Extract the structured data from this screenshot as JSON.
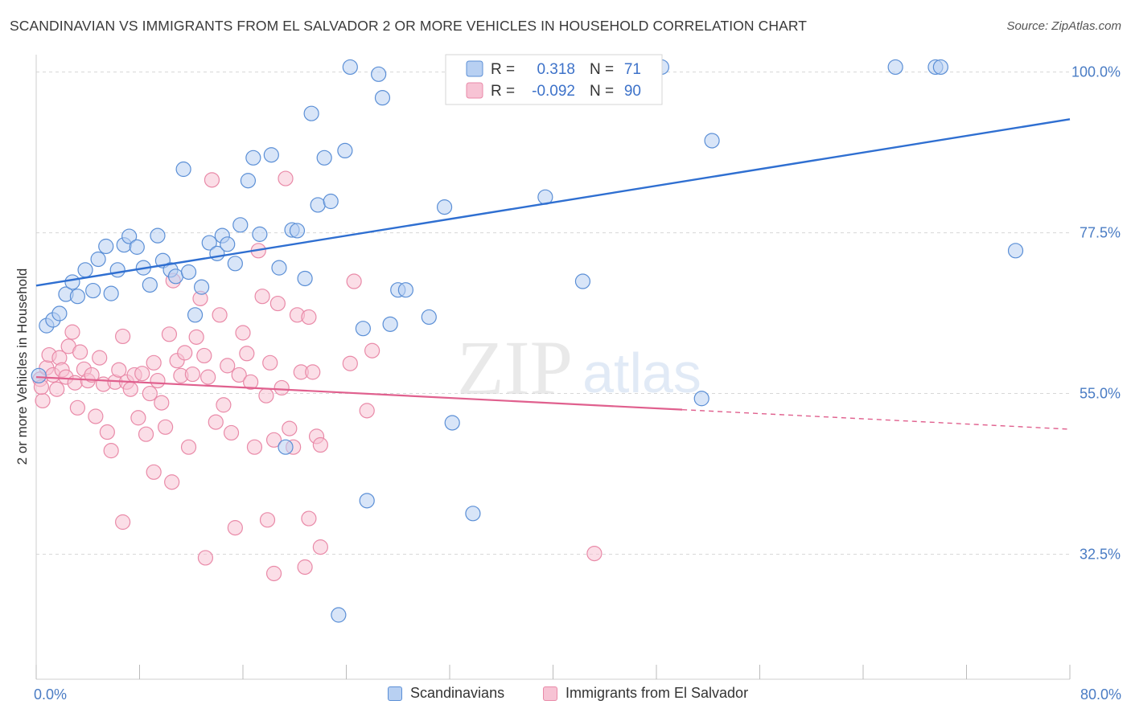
{
  "header": {
    "title": "SCANDINAVIAN VS IMMIGRANTS FROM EL SALVADOR 2 OR MORE VEHICLES IN HOUSEHOLD CORRELATION CHART",
    "source": "Source: ZipAtlas.com"
  },
  "watermark": {
    "zip": "ZIP",
    "atlas": "atlas"
  },
  "colors": {
    "blue_fill": "#b8d0f2",
    "blue_stroke": "#5b8fd6",
    "blue_line": "#2f6fd1",
    "pink_fill": "#f7c3d4",
    "pink_stroke": "#e98aa8",
    "pink_line": "#e0608e",
    "grid": "#d8d8d8",
    "tick_text": "#4a7cc4"
  },
  "legend": {
    "rows": [
      {
        "r_label": "R =",
        "r_value": "0.318",
        "n_label": "N =",
        "n_value": "71"
      },
      {
        "r_label": "R =",
        "r_value": "-0.092",
        "n_label": "N =",
        "n_value": "90"
      }
    ]
  },
  "bottom_legend": {
    "scandinavians": "Scandinavians",
    "el_salvador": "Immigrants from El Salvador"
  },
  "chart_data": {
    "type": "scatter",
    "title": "SCANDINAVIAN VS IMMIGRANTS FROM EL SALVADOR 2 OR MORE VEHICLES IN HOUSEHOLD CORRELATION CHART",
    "xlabel": "",
    "ylabel": "2 or more Vehicles in Household",
    "xlim": [
      0,
      80
    ],
    "ylim": [
      15,
      103
    ],
    "x_tick_labels": [
      {
        "value": 0,
        "label": "0.0%"
      },
      {
        "value": 80,
        "label": "80.0%"
      }
    ],
    "y_tick_labels": [
      {
        "value": 100,
        "label": "100.0%"
      },
      {
        "value": 77.5,
        "label": "77.5%"
      },
      {
        "value": 55,
        "label": "55.0%"
      },
      {
        "value": 32.5,
        "label": "32.5%"
      }
    ],
    "grid": true,
    "legend_position": "top-center",
    "series": [
      {
        "name": "Scandinavians",
        "color": "#5b8fd6",
        "r": 0.318,
        "n": 71,
        "trend": {
          "x": [
            0,
            80
          ],
          "y": [
            70.1,
            93.4
          ],
          "dashed_from": null
        },
        "points": [
          [
            0.2,
            57.5
          ],
          [
            0.8,
            64.5
          ],
          [
            1.3,
            65.3
          ],
          [
            1.8,
            66.2
          ],
          [
            2.3,
            68.9
          ],
          [
            2.8,
            70.6
          ],
          [
            3.2,
            68.6
          ],
          [
            3.8,
            72.3
          ],
          [
            4.4,
            69.4
          ],
          [
            4.8,
            73.8
          ],
          [
            5.4,
            75.6
          ],
          [
            5.8,
            69.0
          ],
          [
            6.3,
            72.3
          ],
          [
            6.8,
            75.8
          ],
          [
            7.2,
            77.0
          ],
          [
            7.8,
            75.5
          ],
          [
            8.3,
            72.6
          ],
          [
            8.8,
            70.2
          ],
          [
            9.4,
            77.1
          ],
          [
            9.8,
            73.6
          ],
          [
            10.4,
            72.3
          ],
          [
            10.8,
            71.4
          ],
          [
            11.4,
            86.4
          ],
          [
            11.8,
            72.0
          ],
          [
            12.3,
            66.0
          ],
          [
            12.8,
            69.9
          ],
          [
            13.4,
            76.1
          ],
          [
            14.0,
            74.6
          ],
          [
            14.4,
            77.1
          ],
          [
            14.8,
            75.9
          ],
          [
            15.4,
            73.2
          ],
          [
            15.8,
            78.6
          ],
          [
            16.4,
            84.8
          ],
          [
            16.8,
            88.0
          ],
          [
            17.3,
            77.3
          ],
          [
            18.2,
            88.4
          ],
          [
            18.8,
            72.6
          ],
          [
            19.3,
            47.5
          ],
          [
            19.8,
            77.9
          ],
          [
            20.2,
            77.8
          ],
          [
            20.8,
            71.1
          ],
          [
            21.3,
            94.2
          ],
          [
            21.8,
            81.4
          ],
          [
            22.3,
            88.0
          ],
          [
            22.8,
            81.9
          ],
          [
            23.4,
            24.0
          ],
          [
            23.9,
            89.0
          ],
          [
            24.3,
            100.7
          ],
          [
            25.3,
            64.1
          ],
          [
            25.6,
            40.0
          ],
          [
            26.5,
            99.7
          ],
          [
            26.8,
            96.4
          ],
          [
            27.4,
            64.7
          ],
          [
            28.0,
            69.5
          ],
          [
            28.6,
            69.5
          ],
          [
            30.4,
            65.7
          ],
          [
            31.6,
            81.1
          ],
          [
            32.2,
            50.9
          ],
          [
            33.8,
            38.2
          ],
          [
            37.3,
            100.7
          ],
          [
            39.4,
            82.5
          ],
          [
            42.3,
            70.7
          ],
          [
            43.2,
            100.7
          ],
          [
            44.2,
            100.7
          ],
          [
            48.4,
            100.7
          ],
          [
            51.5,
            54.3
          ],
          [
            52.3,
            90.4
          ],
          [
            66.5,
            100.7
          ],
          [
            69.6,
            100.7
          ],
          [
            75.8,
            75.0
          ],
          [
            70.0,
            100.7
          ]
        ]
      },
      {
        "name": "Immigrants from El Salvador",
        "color": "#e98aa8",
        "r": -0.092,
        "n": 90,
        "trend": {
          "x": [
            0,
            80
          ],
          "y": [
            57.3,
            50.0
          ],
          "dashed_from": 50
        },
        "points": [
          [
            0.3,
            57.0
          ],
          [
            0.5,
            54.0
          ],
          [
            0.8,
            58.6
          ],
          [
            1.0,
            60.4
          ],
          [
            1.3,
            57.6
          ],
          [
            1.6,
            55.6
          ],
          [
            1.8,
            60.0
          ],
          [
            2.0,
            58.3
          ],
          [
            2.3,
            57.3
          ],
          [
            2.5,
            61.6
          ],
          [
            2.8,
            63.6
          ],
          [
            3.0,
            56.5
          ],
          [
            3.2,
            53.0
          ],
          [
            3.4,
            60.8
          ],
          [
            3.7,
            58.4
          ],
          [
            4.0,
            56.8
          ],
          [
            4.3,
            57.6
          ],
          [
            4.6,
            51.8
          ],
          [
            4.9,
            60.0
          ],
          [
            5.2,
            56.3
          ],
          [
            5.5,
            49.6
          ],
          [
            5.8,
            47.0
          ],
          [
            6.1,
            56.6
          ],
          [
            6.4,
            58.3
          ],
          [
            6.7,
            63.0
          ],
          [
            7.0,
            56.6
          ],
          [
            7.3,
            55.6
          ],
          [
            7.6,
            57.6
          ],
          [
            7.9,
            51.6
          ],
          [
            8.2,
            57.8
          ],
          [
            8.5,
            49.3
          ],
          [
            8.8,
            55.0
          ],
          [
            9.1,
            59.3
          ],
          [
            9.4,
            56.8
          ],
          [
            9.7,
            53.7
          ],
          [
            10.0,
            50.3
          ],
          [
            10.3,
            63.3
          ],
          [
            10.6,
            70.8
          ],
          [
            10.9,
            59.6
          ],
          [
            11.2,
            57.5
          ],
          [
            11.5,
            60.7
          ],
          [
            11.8,
            47.5
          ],
          [
            12.1,
            57.7
          ],
          [
            12.4,
            62.9
          ],
          [
            12.7,
            68.3
          ],
          [
            13.0,
            60.3
          ],
          [
            13.3,
            57.3
          ],
          [
            13.6,
            84.9
          ],
          [
            13.9,
            51.0
          ],
          [
            14.2,
            66.0
          ],
          [
            14.5,
            53.4
          ],
          [
            14.8,
            58.9
          ],
          [
            15.1,
            49.5
          ],
          [
            15.4,
            36.2
          ],
          [
            15.7,
            57.6
          ],
          [
            16.0,
            63.5
          ],
          [
            16.3,
            60.6
          ],
          [
            16.6,
            56.6
          ],
          [
            16.9,
            47.5
          ],
          [
            17.2,
            75.0
          ],
          [
            17.5,
            68.6
          ],
          [
            17.8,
            54.7
          ],
          [
            18.1,
            59.3
          ],
          [
            18.4,
            48.5
          ],
          [
            18.7,
            67.6
          ],
          [
            19.0,
            55.8
          ],
          [
            19.3,
            85.1
          ],
          [
            19.6,
            50.1
          ],
          [
            19.9,
            47.5
          ],
          [
            20.2,
            66.0
          ],
          [
            20.5,
            58.0
          ],
          [
            20.8,
            30.7
          ],
          [
            21.1,
            65.7
          ],
          [
            21.4,
            58.0
          ],
          [
            21.7,
            49.0
          ],
          [
            22.0,
            47.8
          ],
          [
            24.3,
            59.2
          ],
          [
            24.6,
            70.7
          ],
          [
            25.6,
            52.6
          ],
          [
            26.0,
            61.0
          ],
          [
            9.1,
            44.0
          ],
          [
            6.7,
            37.0
          ],
          [
            10.5,
            42.6
          ],
          [
            13.1,
            32.0
          ],
          [
            17.9,
            37.3
          ],
          [
            18.4,
            29.8
          ],
          [
            21.1,
            37.5
          ],
          [
            22.0,
            33.5
          ],
          [
            43.2,
            32.6
          ],
          [
            0.4,
            55.9
          ]
        ]
      }
    ]
  }
}
